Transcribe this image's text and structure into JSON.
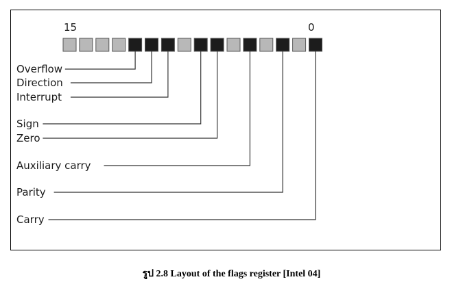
{
  "register": {
    "msb_label": "15",
    "lsb_label": "0",
    "colors": {
      "used_bit": "#1c1c1c",
      "reserved_bit": "#b8b8b8"
    },
    "bits": [
      {
        "bit": 15,
        "used": false
      },
      {
        "bit": 14,
        "used": false
      },
      {
        "bit": 13,
        "used": false
      },
      {
        "bit": 12,
        "used": false
      },
      {
        "bit": 11,
        "used": true
      },
      {
        "bit": 10,
        "used": true
      },
      {
        "bit": 9,
        "used": true
      },
      {
        "bit": 8,
        "used": false
      },
      {
        "bit": 7,
        "used": true
      },
      {
        "bit": 6,
        "used": true
      },
      {
        "bit": 5,
        "used": false
      },
      {
        "bit": 4,
        "used": true
      },
      {
        "bit": 3,
        "used": false
      },
      {
        "bit": 2,
        "used": true
      },
      {
        "bit": 1,
        "used": false
      },
      {
        "bit": 0,
        "used": true
      }
    ]
  },
  "flags": [
    {
      "name": "Overflow",
      "bit": 11
    },
    {
      "name": "Direction",
      "bit": 10
    },
    {
      "name": "Interrupt",
      "bit": 9
    },
    {
      "name": "Sign",
      "bit": 7
    },
    {
      "name": "Zero",
      "bit": 6
    },
    {
      "name": "Auxiliary carry",
      "bit": 4
    },
    {
      "name": "Parity",
      "bit": 2
    },
    {
      "name": "Carry",
      "bit": 0
    }
  ],
  "caption": "รูป 2.8  Layout of the flags register [Intel 04]"
}
